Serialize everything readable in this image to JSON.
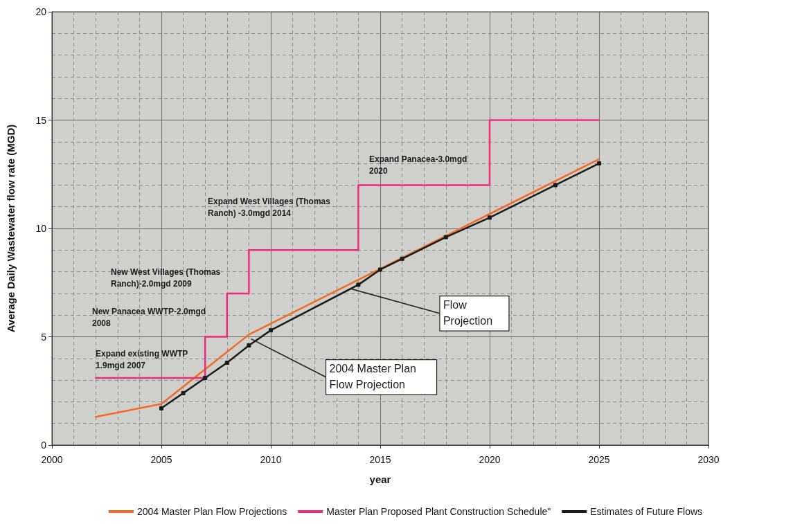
{
  "chart_data": {
    "type": "line",
    "xlabel": "year",
    "ylabel": "Average Daily Wastewater flow rate (MGD)",
    "xlim": [
      2000,
      2030
    ],
    "xticks": [
      2000,
      2005,
      2010,
      2015,
      2020,
      2025,
      2030
    ],
    "ylim": [
      0,
      20
    ],
    "yticks": [
      0,
      5,
      10,
      15,
      20
    ],
    "grid": true,
    "legend": "bottom",
    "line_style": "solid",
    "series": [
      {
        "name": "2004 Master Plan Flow Projections",
        "color": "#f26a21",
        "marker": "none",
        "x": [
          2002,
          2005,
          2007,
          2009,
          2025
        ],
        "values": [
          1.3,
          1.9,
          3.5,
          5.1,
          13.2
        ]
      },
      {
        "name": "Master Plan Proposed Plant Construction Schedule\"",
        "type": "step",
        "color": "#ee2a7b",
        "marker": "none",
        "x": [
          2002,
          2007,
          2008,
          2009,
          2014,
          2020,
          2025
        ],
        "values": [
          3.1,
          5,
          7,
          9,
          12,
          15,
          15
        ]
      },
      {
        "name": "Estimates of Future Flows",
        "color": "#1a1a1a",
        "marker": "square",
        "x": [
          2005,
          2006,
          2007,
          2008,
          2009,
          2010,
          2014,
          2015,
          2016,
          2018,
          2020,
          2023,
          2025
        ],
        "values": [
          1.7,
          2.4,
          3.1,
          3.8,
          4.6,
          5.3,
          7.4,
          8.1,
          8.6,
          9.6,
          10.5,
          12.0,
          13.0
        ]
      }
    ],
    "annotations": [
      "Expand existing WWTP\n1.9mgd  2007",
      "New Panacea WWTP-2.0mgd\n2008",
      "New West Villages (Thomas\nRanch)-2.0mgd  2009",
      "Expand West Villages (Thomas\nRanch) -3.0mgd  2014",
      "Expand Panacea-3.0mgd\n2020",
      {
        "text": "Flow\nProjection",
        "x": 2013.7,
        "y": 7.2
      },
      {
        "text": "2004 Master Plan\nFlow Projection",
        "x": 2009.1,
        "y": 4.9
      }
    ]
  }
}
